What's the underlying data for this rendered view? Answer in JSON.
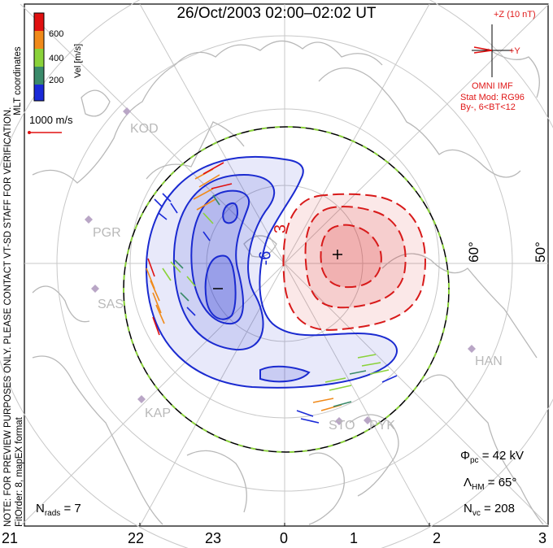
{
  "title": "26/Oct/2003 02:00–02:02 UT",
  "side_notes": {
    "line1": "NOTE: FOR PREVIEW PURPOSES ONLY. PLEASE CONTACT VT-SD STAFF FOR VERIFICATION.",
    "line2": "FitOrder: 8, mapEX format",
    "coords": "MLT coordinates"
  },
  "colorbar": {
    "label": "Vel [m/s]",
    "ticks": [
      "600",
      "400",
      "200"
    ],
    "colors": [
      "#e01010",
      "#f08a1a",
      "#8ad23a",
      "#3a8a6a",
      "#1a2ad8"
    ]
  },
  "scale_vector": "1000 m/s",
  "imf": {
    "z_label": "+Z (10 nT)",
    "y_label": "+Y",
    "source": "OMNI IMF",
    "model": "Stat Mod: RG96",
    "condition": "By-, 6<BT<12"
  },
  "potential_labels": {
    "neg_contour": "-6",
    "pos_contour": "3",
    "max_symbol": "+",
    "min_symbol": "–"
  },
  "latitude_labels": [
    "60°",
    "50°"
  ],
  "stations": [
    {
      "code": "KOD"
    },
    {
      "code": "PGR"
    },
    {
      "code": "SAS"
    },
    {
      "code": "KAP"
    },
    {
      "code": "STO"
    },
    {
      "code": "PYK"
    },
    {
      "code": "HAN"
    }
  ],
  "mlt_labels": [
    "21",
    "22",
    "23",
    "0",
    "1",
    "2",
    "3"
  ],
  "stats": {
    "phi_symbol": "Φ",
    "phi_sub": "pc",
    "phi_value": "= 42 kV",
    "lambda_symbol": "Λ",
    "lambda_sub": "HM",
    "lambda_value": "= 65°",
    "nvc_symbol": "N",
    "nvc_sub": "vc",
    "nvc_value": "= 208",
    "nrads_symbol": "N",
    "nrads_sub": "rads",
    "nrads_value": "= 7"
  },
  "colors": {
    "negative_cell": "#1a2ad0",
    "positive_cell": "#d81a1a",
    "grid": "#c8c8c8",
    "coast": "#b8b8b8",
    "boundary_dash": "#8ad23a"
  }
}
